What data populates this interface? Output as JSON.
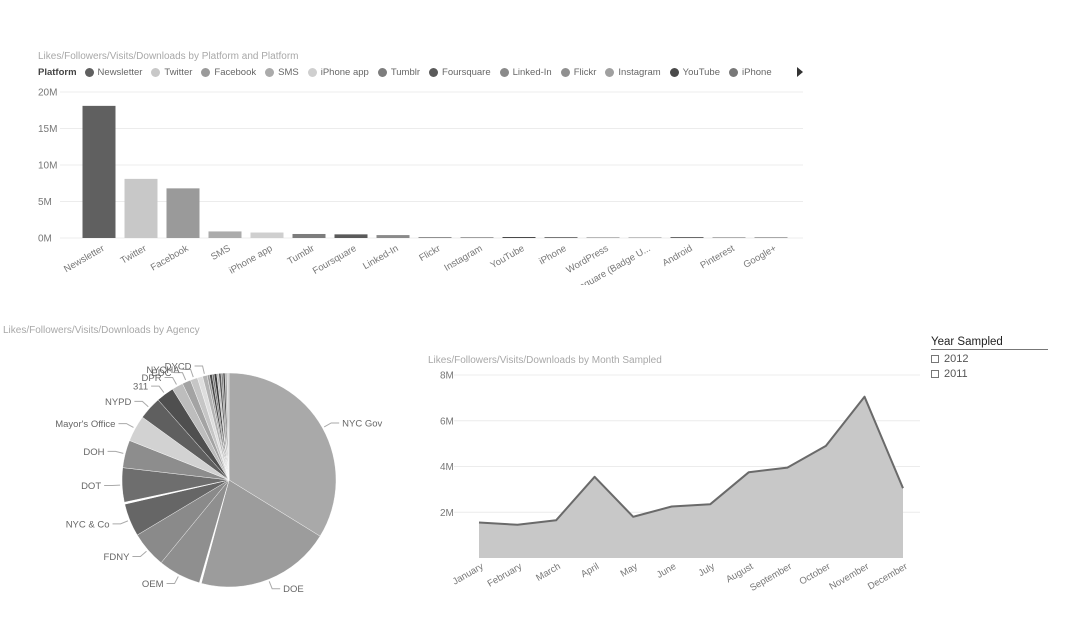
{
  "bar_chart": {
    "title": "Likes/Followers/Visits/Downloads by Platform and Platform",
    "legend_title": "Platform",
    "legend_items": [
      {
        "label": "Newsletter",
        "color": "#606060"
      },
      {
        "label": "Twitter",
        "color": "#c8c8c8"
      },
      {
        "label": "Facebook",
        "color": "#9a9a9a"
      },
      {
        "label": "SMS",
        "color": "#ababab"
      },
      {
        "label": "iPhone app",
        "color": "#cfcfcf"
      },
      {
        "label": "Tumblr",
        "color": "#7d7d7d"
      },
      {
        "label": "Foursquare",
        "color": "#5a5a5a"
      },
      {
        "label": "Linked-In",
        "color": "#8a8a8a"
      },
      {
        "label": "Flickr",
        "color": "#909090"
      },
      {
        "label": "Instagram",
        "color": "#a0a0a0"
      },
      {
        "label": "YouTube",
        "color": "#4a4a4a"
      },
      {
        "label": "iPhone",
        "color": "#787878"
      }
    ]
  },
  "pie_chart": {
    "title": "Likes/Followers/Visits/Downloads by Agency"
  },
  "area_chart": {
    "title": "Likes/Followers/Visits/Downloads by Month Sampled"
  },
  "slicer": {
    "title": "Year Sampled",
    "items": [
      "2012",
      "2011"
    ]
  },
  "chart_data": [
    {
      "type": "bar",
      "title": "Likes/Followers/Visits/Downloads by Platform and Platform",
      "categories": [
        "Newsletter",
        "Twitter",
        "Facebook",
        "SMS",
        "iPhone app",
        "Tumblr",
        "Foursquare",
        "Linked-In",
        "Flickr",
        "Instagram",
        "YouTube",
        "iPhone",
        "WordPress",
        "Foursquare (Badge U...",
        "Android",
        "Pinterest",
        "Google+"
      ],
      "values": [
        18.1,
        8.1,
        6.8,
        0.9,
        0.75,
        0.55,
        0.5,
        0.4,
        0.1,
        0.08,
        0.07,
        0.06,
        0.04,
        0.03,
        0.07,
        0.03,
        0.03
      ],
      "colors": [
        "#606060",
        "#c8c8c8",
        "#9a9a9a",
        "#ababab",
        "#cfcfcf",
        "#7d7d7d",
        "#5a5a5a",
        "#8a8a8a",
        "#909090",
        "#a0a0a0",
        "#4a4a4a",
        "#787878",
        "#b8b8b8",
        "#c0c0c0",
        "#6a6a6a",
        "#b0b0b0",
        "#a8a8a8"
      ],
      "ylim": [
        0,
        20
      ],
      "yticks": [
        0,
        5,
        10,
        15,
        20
      ],
      "ytick_labels": [
        "0M",
        "5M",
        "10M",
        "15M",
        "20M"
      ],
      "grid": true,
      "legend": "top"
    },
    {
      "type": "pie",
      "title": "Likes/Followers/Visits/Downloads by Agency",
      "slices": [
        {
          "label": "NYC Gov",
          "value": 34,
          "color": "#a9a9a9"
        },
        {
          "label": "DOE",
          "value": 20.5,
          "color": "#9c9c9c"
        },
        {
          "label": "",
          "value": 0.3,
          "color": "#ffffff"
        },
        {
          "label": "OEM",
          "value": 6.5,
          "color": "#8f8f8f"
        },
        {
          "label": "FDNY",
          "value": 5.5,
          "color": "#8a8a8a"
        },
        {
          "label": "NYC & Co",
          "value": 5,
          "color": "#666666"
        },
        {
          "label": "",
          "value": 0.3,
          "color": "#ffffff"
        },
        {
          "label": "DOT",
          "value": 5.2,
          "color": "#6e6e6e"
        },
        {
          "label": "DOH",
          "value": 4.2,
          "color": "#8d8d8d"
        },
        {
          "label": "Mayor's Office",
          "value": 4,
          "color": "#d2d2d2"
        },
        {
          "label": "NYPD",
          "value": 3.5,
          "color": "#5f5f5f"
        },
        {
          "label": "311",
          "value": 2.7,
          "color": "#4f4f4f"
        },
        {
          "label": "DPR",
          "value": 1.7,
          "color": "#bdbdbd"
        },
        {
          "label": "EDC",
          "value": 1.3,
          "color": "#a3a3a3"
        },
        {
          "label": "NYCHA",
          "value": 1.1,
          "color": "#c6c6c6"
        },
        {
          "label": "",
          "value": 0.8,
          "color": "#dedede"
        },
        {
          "label": "DYCD",
          "value": 0.7,
          "color": "#b3b3b3"
        },
        {
          "label": "",
          "value": 0.35,
          "color": "#9a9a9a"
        },
        {
          "label": "",
          "value": 0.4,
          "color": "#4a4a4a"
        },
        {
          "label": "",
          "value": 0.3,
          "color": "#777777"
        },
        {
          "label": "",
          "value": 0.4,
          "color": "#3a3a3a"
        },
        {
          "label": "",
          "value": 0.3,
          "color": "#bbbbbb"
        },
        {
          "label": "",
          "value": 0.35,
          "color": "#5a5a5a"
        },
        {
          "label": "",
          "value": 0.3,
          "color": "#888888"
        },
        {
          "label": "",
          "value": 0.3,
          "color": "#444444"
        },
        {
          "label": "",
          "value": 0.3,
          "color": "#aaaaaa"
        },
        {
          "label": "",
          "value": 0.3,
          "color": "#cccccc"
        }
      ]
    },
    {
      "type": "area",
      "title": "Likes/Followers/Visits/Downloads by Month Sampled",
      "categories": [
        "January",
        "February",
        "March",
        "April",
        "May",
        "June",
        "July",
        "August",
        "September",
        "October",
        "November",
        "December"
      ],
      "values": [
        1.55,
        1.45,
        1.65,
        3.55,
        1.8,
        2.25,
        2.35,
        3.75,
        3.95,
        4.9,
        7.05,
        3.05
      ],
      "ylim": [
        0,
        8
      ],
      "yticks": [
        2,
        4,
        6,
        8
      ],
      "ytick_labels": [
        "2M",
        "4M",
        "6M",
        "8M"
      ],
      "fill_color": "#c8c8c8",
      "line_color": "#6a6a6a",
      "grid": true
    }
  ]
}
